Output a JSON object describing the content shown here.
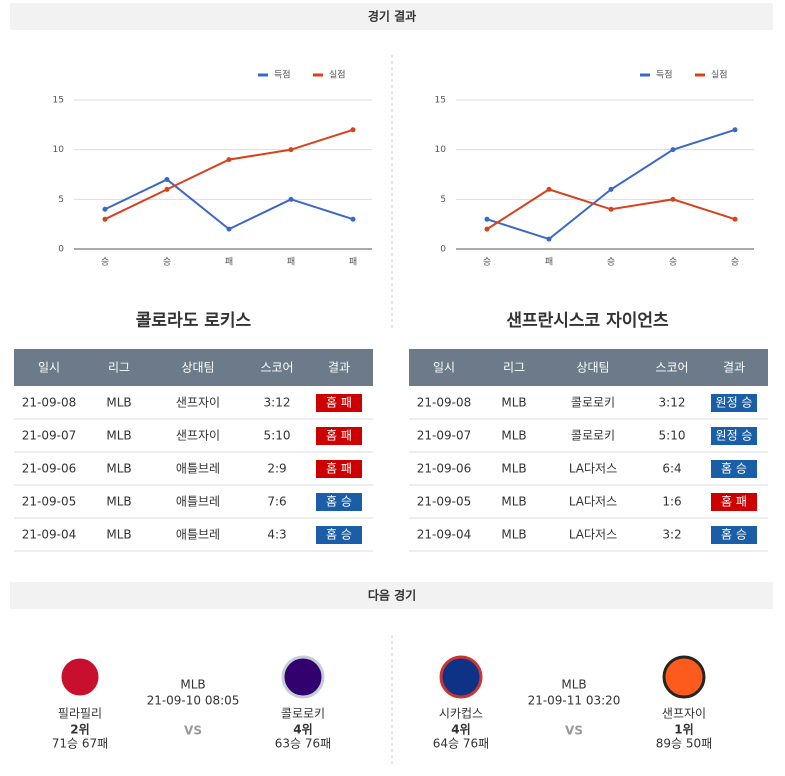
{
  "results_title": "경기 결과",
  "next_title": "다음 경기",
  "chart_data": [
    {
      "type": "line",
      "categories": [
        "승",
        "승",
        "패",
        "패",
        "패"
      ],
      "series": [
        {
          "name": "득점",
          "color": "#3a68c8",
          "values": [
            4,
            7,
            2,
            5,
            3
          ]
        },
        {
          "name": "실점",
          "color": "#d6421b",
          "values": [
            3,
            6,
            9,
            10,
            12
          ]
        }
      ],
      "ylim": [
        0,
        15
      ],
      "yticks": [
        0,
        5,
        10,
        15
      ],
      "grid": true,
      "legend": "top-right"
    },
    {
      "type": "line",
      "categories": [
        "승",
        "패",
        "승",
        "승",
        "승"
      ],
      "series": [
        {
          "name": "득점",
          "color": "#3a68c8",
          "values": [
            3,
            1,
            6,
            10,
            12
          ]
        },
        {
          "name": "실점",
          "color": "#d6421b",
          "values": [
            2,
            6,
            4,
            5,
            3
          ]
        }
      ],
      "ylim": [
        0,
        15
      ],
      "yticks": [
        0,
        5,
        10,
        15
      ],
      "grid": true,
      "legend": "top-right"
    }
  ],
  "teams": [
    {
      "name": "콜로라도 로키스",
      "columns": [
        "일시",
        "리그",
        "상대팀",
        "스코어",
        "결과"
      ],
      "rows": [
        [
          "21-09-08",
          "MLB",
          "샌프자이",
          "3:12",
          "홈 패"
        ],
        [
          "21-09-07",
          "MLB",
          "샌프자이",
          "5:10",
          "홈 패"
        ],
        [
          "21-09-06",
          "MLB",
          "애틀브레",
          "2:9",
          "홈 패"
        ],
        [
          "21-09-05",
          "MLB",
          "애틀브레",
          "7:6",
          "홈 승"
        ],
        [
          "21-09-04",
          "MLB",
          "애틀브레",
          "4:3",
          "홈 승"
        ]
      ],
      "badge_colors": [
        "#cc0000",
        "#cc0000",
        "#cc0000",
        "#1a5ea8",
        "#1a5ea8"
      ]
    },
    {
      "name": "샌프란시스코 자이언츠",
      "columns": [
        "일시",
        "리그",
        "상대팀",
        "스코어",
        "결과"
      ],
      "rows": [
        [
          "21-09-08",
          "MLB",
          "콜로로키",
          "3:12",
          "원정 승"
        ],
        [
          "21-09-07",
          "MLB",
          "콜로로키",
          "5:10",
          "원정 승"
        ],
        [
          "21-09-06",
          "MLB",
          "LA다저스",
          "6:4",
          "홈 승"
        ],
        [
          "21-09-05",
          "MLB",
          "LA다저스",
          "1:6",
          "홈 패"
        ],
        [
          "21-09-04",
          "MLB",
          "LA다저스",
          "3:2",
          "홈 승"
        ]
      ],
      "badge_colors": [
        "#1a5ea8",
        "#1a5ea8",
        "#1a5ea8",
        "#cc0000",
        "#1a5ea8"
      ]
    }
  ],
  "next_games": [
    {
      "league": "MLB",
      "datetime": "21-09-10 08:05",
      "vs": "VS",
      "teams": [
        {
          "name": "필라필리",
          "rank": "2위",
          "record": "71승 67패"
        },
        {
          "name": "콜로로키",
          "rank": "4위",
          "record": "63승 76패"
        }
      ]
    },
    {
      "league": "MLB",
      "datetime": "21-09-11 03:20",
      "vs": "VS",
      "teams": [
        {
          "name": "시카컵스",
          "rank": "4위",
          "record": "64승 76패"
        },
        {
          "name": "샌프자이",
          "rank": "1위",
          "record": "89승 50패"
        }
      ]
    }
  ]
}
